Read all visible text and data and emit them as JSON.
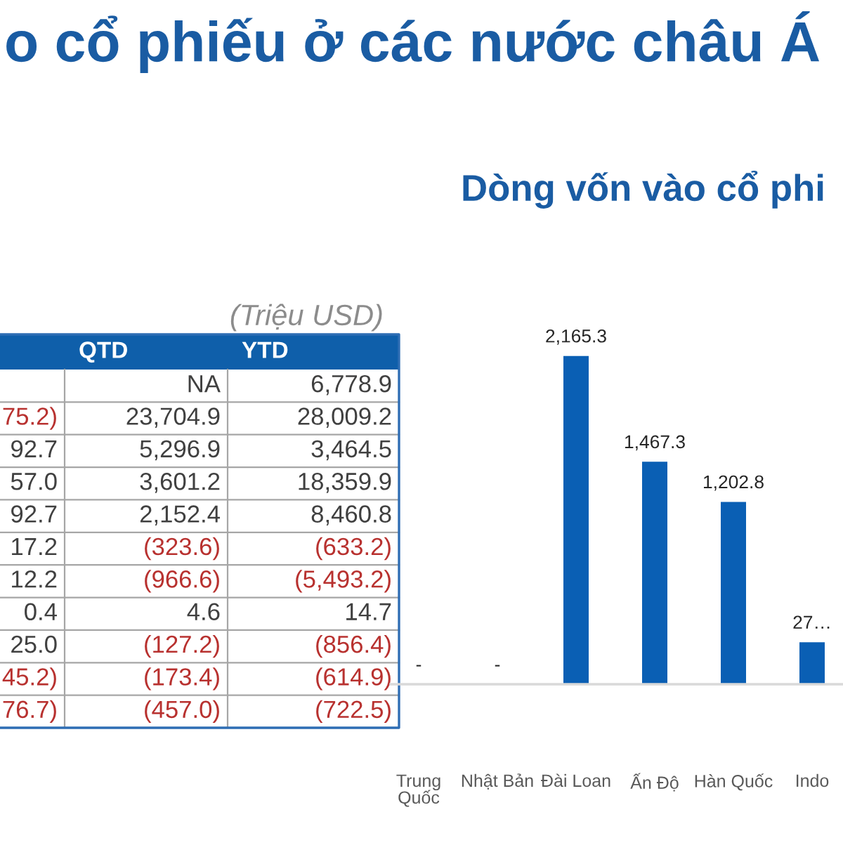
{
  "chart_data": [
    {
      "type": "other",
      "title": "o cổ phiếu ở các nước châu Á",
      "annotations": [
        "(Triệu USD)"
      ],
      "categories": [
        null,
        "QTD",
        "YTD"
      ],
      "cell_labels": [
        [
          null,
          "NA",
          "6,778.9"
        ],
        [
          "75.2)",
          "23,704.9",
          "28,009.2"
        ],
        [
          "92.7",
          "5,296.9",
          "3,464.5"
        ],
        [
          "57.0",
          "3,601.2",
          "18,359.9"
        ],
        [
          "92.7",
          "2,152.4",
          "8,460.8"
        ],
        [
          "17.2",
          "(323.6)",
          "(633.2)"
        ],
        [
          "12.2",
          "(966.6)",
          "(5,493.2)"
        ],
        [
          "0.4",
          "4.6",
          "14.7"
        ],
        [
          "25.0",
          "(127.2)",
          "(856.4)"
        ],
        [
          "45.2)",
          "(173.4)",
          "(614.9)"
        ],
        [
          "76.7)",
          "(457.0)",
          "(722.5)"
        ]
      ],
      "colors": [
        [
          "#404040",
          "#404040",
          "#404040"
        ],
        [
          "#b8312f",
          "#404040",
          "#404040"
        ],
        [
          "#404040",
          "#404040",
          "#404040"
        ],
        [
          "#404040",
          "#404040",
          "#404040"
        ],
        [
          "#404040",
          "#404040",
          "#404040"
        ],
        [
          "#404040",
          "#b8312f",
          "#b8312f"
        ],
        [
          "#404040",
          "#b8312f",
          "#b8312f"
        ],
        [
          "#404040",
          "#404040",
          "#404040"
        ],
        [
          "#404040",
          "#b8312f",
          "#b8312f"
        ],
        [
          "#b8312f",
          "#b8312f",
          "#b8312f"
        ],
        [
          "#b8312f",
          "#b8312f",
          "#b8312f"
        ]
      ]
    },
    {
      "type": "bar",
      "title": "Dòng vốn vào cổ phi",
      "categories": [
        "Trung Quốc",
        "Nhật Bản",
        "Đài Loan",
        "Ấn Độ",
        "Hàn Quốc",
        "Indo"
      ],
      "values": [
        null,
        null,
        2165.3,
        1467.3,
        1202.8,
        277
      ],
      "value_labels": [
        "-",
        "-",
        "2,165.3",
        "1,467.3",
        "1,202.8",
        "27…"
      ],
      "color": "#0a5fb4",
      "tick_labels": "x"
    }
  ]
}
